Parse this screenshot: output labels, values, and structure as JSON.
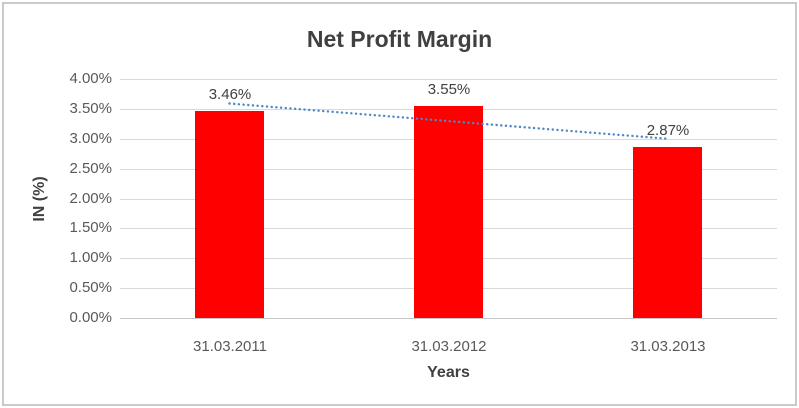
{
  "chart_data": {
    "type": "bar",
    "title": "Net Profit Margin",
    "categories": [
      "31.03.2011",
      "31.03.2012",
      "31.03.2013"
    ],
    "values": [
      3.46,
      3.55,
      2.87
    ],
    "data_labels": [
      "3.46%",
      "3.55%",
      "2.87%"
    ],
    "xlabel": "Years",
    "ylabel": "IN (%)",
    "ylim": [
      0,
      4
    ],
    "ytick_step": 0.5,
    "ytick_labels": [
      "0.00%",
      "0.50%",
      "1.00%",
      "1.50%",
      "2.00%",
      "2.50%",
      "3.00%",
      "3.50%",
      "4.00%"
    ],
    "grid": true,
    "legend": "none",
    "colors": {
      "bar": "#ff0000",
      "trendline": "#4e86c8",
      "gridline": "#d9d9d9",
      "axis_line": "#c6c6c6",
      "tick_text": "#595959",
      "title_text": "#404040",
      "frame_border": "#cacaca"
    },
    "trendline": {
      "type": "linear",
      "style": "dotted",
      "endpoint_values": [
        3.59,
        3.0
      ]
    }
  }
}
